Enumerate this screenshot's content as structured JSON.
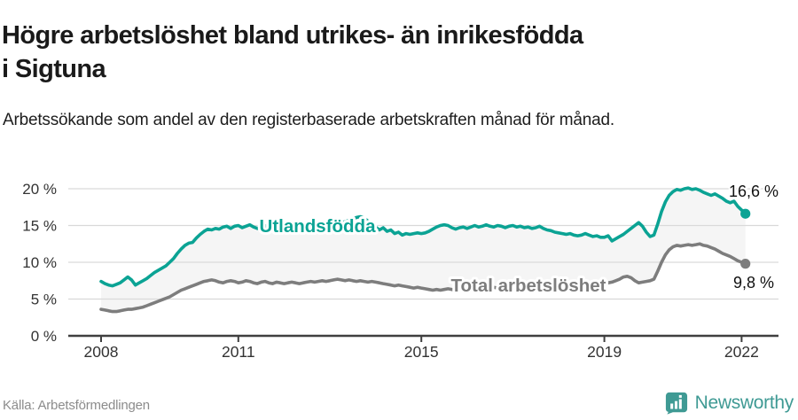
{
  "footer": {
    "source": "Källa: Arbetsförmedlingen",
    "brand": "Newsworthy"
  },
  "icons": {
    "logo": "newsworthy-bars-logo"
  },
  "colors": {
    "accent_teal": "#0ba394",
    "series_gray": "#7d7d7d",
    "fill_between": "#f5f5f5",
    "grid": "#d9d9d9",
    "axis": "#3f3f3f",
    "text_dark": "#1a1a1a",
    "annotation": "#111111",
    "brand_teal": "#3f9a94"
  },
  "chart_data": {
    "type": "line",
    "title": "Högre arbetslöshet bland utrikes- än inrikesfödda i Sigtuna",
    "subtitle": "Arbetssökande som andel av den registerbaserade arbetskraften månad för månad.",
    "x_unit": "year-month",
    "x_start": 2008.0,
    "x_step_months": 1,
    "xlim": [
      2007.3,
      2022.8
    ],
    "ylim": [
      0,
      21
    ],
    "grid": true,
    "legend_position": "inline-labels",
    "x_ticks": [
      {
        "value": 2008,
        "label": "2008"
      },
      {
        "value": 2011,
        "label": "2011"
      },
      {
        "value": 2015,
        "label": "2015"
      },
      {
        "value": 2019,
        "label": "2019"
      },
      {
        "value": 2022,
        "label": "2022"
      }
    ],
    "y_ticks": [
      {
        "value": 0,
        "label": "0 %"
      },
      {
        "value": 5,
        "label": "5 %"
      },
      {
        "value": 10,
        "label": "10 %"
      },
      {
        "value": 15,
        "label": "15 %"
      },
      {
        "value": 20,
        "label": "20 %"
      }
    ],
    "fill_between_series": {
      "color": "#f5f5f5"
    },
    "series": [
      {
        "name": "Utlandsfödda",
        "color": "#0ba394",
        "end_label": "16,6 %",
        "end_value": 16.6,
        "values": [
          7.4,
          7.1,
          6.9,
          6.8,
          7.0,
          7.2,
          7.6,
          8.0,
          7.6,
          6.9,
          7.2,
          7.5,
          7.8,
          8.2,
          8.6,
          8.9,
          9.2,
          9.5,
          10.0,
          10.5,
          11.2,
          11.8,
          12.3,
          12.6,
          12.7,
          13.3,
          13.8,
          14.2,
          14.5,
          14.4,
          14.6,
          14.5,
          14.8,
          14.9,
          14.6,
          14.9,
          15.0,
          14.7,
          14.9,
          15.1,
          14.8,
          14.6,
          14.8,
          15.0,
          14.7,
          14.8,
          15.0,
          14.8,
          14.9,
          15.1,
          15.0,
          14.8,
          14.9,
          15.0,
          15.1,
          15.0,
          14.9,
          15.0,
          15.1,
          15.0,
          15.1,
          15.2,
          15.3,
          15.4,
          15.5,
          15.7,
          15.9,
          16.1,
          16.2,
          16.0,
          15.6,
          15.2,
          14.8,
          14.4,
          14.7,
          14.2,
          14.4,
          13.9,
          14.1,
          13.7,
          13.9,
          13.8,
          13.9,
          14.0,
          13.9,
          14.0,
          14.2,
          14.5,
          14.8,
          15.0,
          15.1,
          15.0,
          14.7,
          14.5,
          14.7,
          14.8,
          14.6,
          14.8,
          15.0,
          14.8,
          14.9,
          15.1,
          14.9,
          14.8,
          15.0,
          14.9,
          14.7,
          14.9,
          15.0,
          14.8,
          14.9,
          14.7,
          14.8,
          14.6,
          14.7,
          14.9,
          14.6,
          14.4,
          14.3,
          14.1,
          14.0,
          13.9,
          13.8,
          13.9,
          13.7,
          13.6,
          13.7,
          13.9,
          13.7,
          13.5,
          13.6,
          13.4,
          13.4,
          13.6,
          12.9,
          13.2,
          13.5,
          13.8,
          14.2,
          14.6,
          15.0,
          15.4,
          14.9,
          14.1,
          13.5,
          13.7,
          15.2,
          16.9,
          18.2,
          19.1,
          19.6,
          19.9,
          19.8,
          20.0,
          20.1,
          19.9,
          20.0,
          19.8,
          19.5,
          19.3,
          19.1,
          19.3,
          19.0,
          18.7,
          18.3,
          18.1,
          18.3,
          17.6,
          17.1,
          16.6
        ]
      },
      {
        "name": "Total arbetslöshet",
        "color": "#7d7d7d",
        "end_label": "9,8 %",
        "end_value": 9.8,
        "values": [
          3.6,
          3.5,
          3.4,
          3.3,
          3.3,
          3.4,
          3.5,
          3.6,
          3.6,
          3.7,
          3.8,
          3.9,
          4.1,
          4.3,
          4.5,
          4.7,
          4.9,
          5.1,
          5.3,
          5.6,
          5.9,
          6.2,
          6.4,
          6.6,
          6.8,
          7.0,
          7.2,
          7.4,
          7.5,
          7.6,
          7.5,
          7.3,
          7.2,
          7.4,
          7.5,
          7.4,
          7.2,
          7.3,
          7.5,
          7.4,
          7.2,
          7.1,
          7.3,
          7.4,
          7.2,
          7.1,
          7.3,
          7.2,
          7.1,
          7.2,
          7.3,
          7.2,
          7.1,
          7.2,
          7.3,
          7.4,
          7.3,
          7.4,
          7.5,
          7.4,
          7.5,
          7.6,
          7.7,
          7.6,
          7.5,
          7.6,
          7.5,
          7.4,
          7.5,
          7.4,
          7.3,
          7.4,
          7.3,
          7.2,
          7.1,
          7.0,
          6.9,
          6.8,
          6.9,
          6.8,
          6.7,
          6.6,
          6.5,
          6.6,
          6.5,
          6.4,
          6.3,
          6.2,
          6.3,
          6.2,
          6.3,
          6.4,
          6.3,
          6.2,
          6.3,
          6.4,
          6.3,
          6.2,
          6.3,
          6.4,
          6.5,
          6.4,
          6.5,
          6.6,
          6.5,
          6.4,
          6.5,
          6.6,
          6.5,
          6.6,
          6.7,
          6.6,
          6.5,
          6.6,
          6.7,
          6.8,
          6.7,
          6.6,
          6.7,
          6.8,
          6.7,
          6.6,
          6.7,
          6.8,
          6.7,
          6.8,
          6.9,
          7.0,
          6.9,
          6.8,
          6.9,
          7.0,
          7.1,
          7.2,
          7.3,
          7.5,
          7.7,
          8.0,
          8.1,
          7.9,
          7.5,
          7.2,
          7.3,
          7.4,
          7.5,
          7.7,
          8.8,
          10.0,
          11.0,
          11.7,
          12.1,
          12.3,
          12.2,
          12.3,
          12.4,
          12.3,
          12.4,
          12.5,
          12.3,
          12.2,
          12.0,
          11.8,
          11.5,
          11.2,
          11.0,
          10.8,
          10.5,
          10.2,
          10.0,
          9.8
        ]
      }
    ]
  }
}
